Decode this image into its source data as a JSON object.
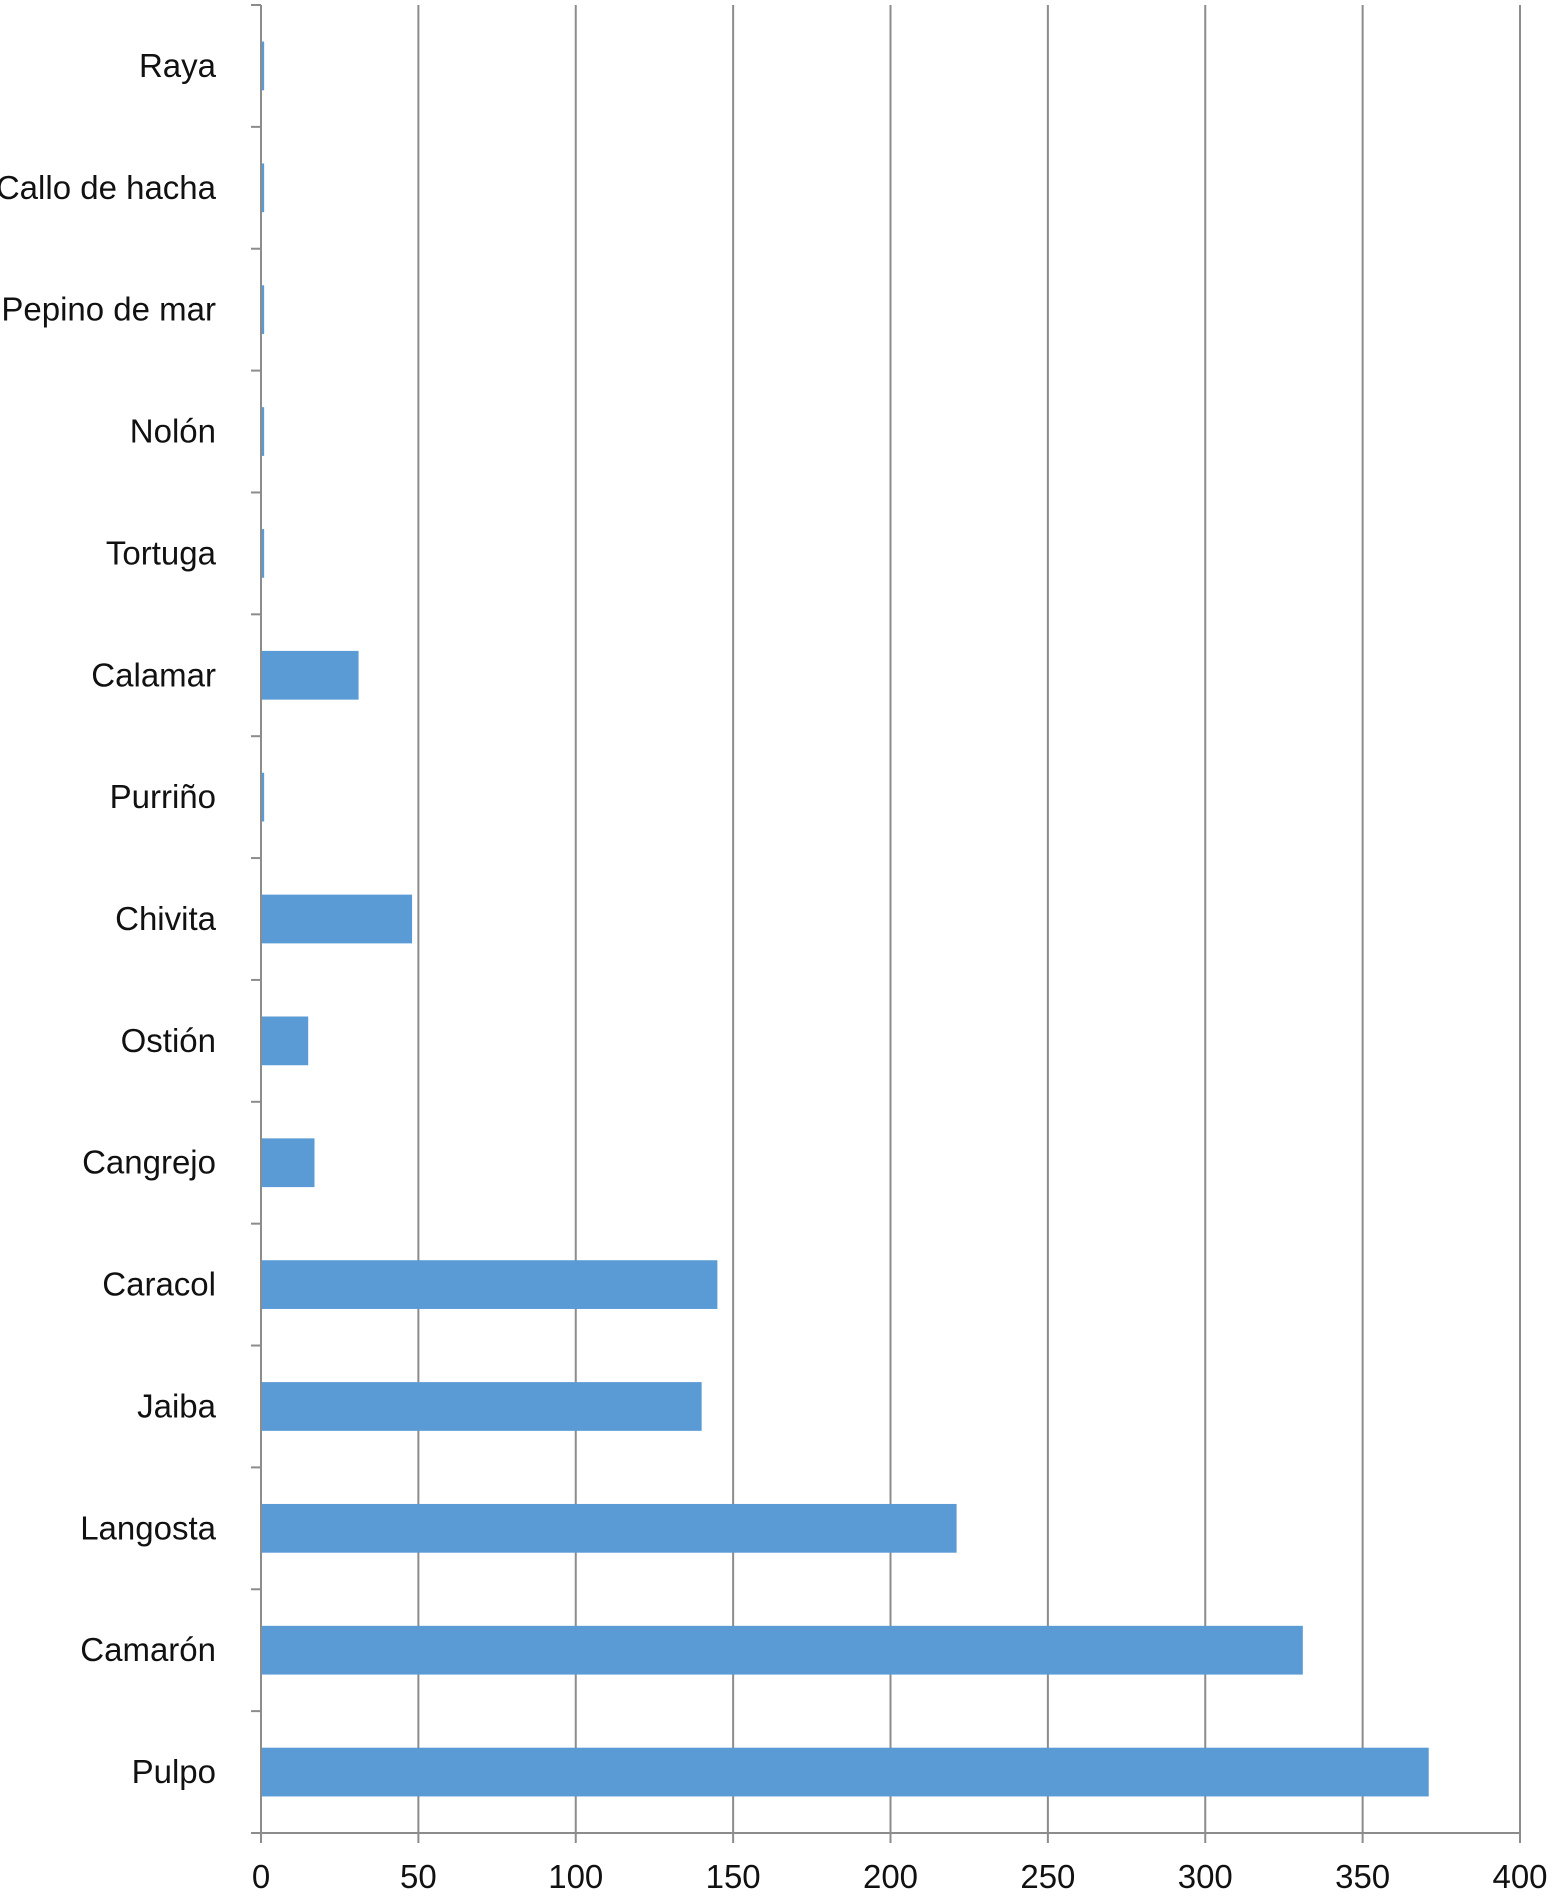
{
  "chart_data": {
    "type": "bar",
    "orientation": "horizontal",
    "categories": [
      "Raya",
      "Callo de hacha",
      "Pepino de mar",
      "Nolón",
      "Tortuga",
      "Calamar",
      "Purriño",
      "Chivita",
      "Ostión",
      "Cangrejo",
      "Caracol",
      "Jaiba",
      "Langosta",
      "Camarón",
      "Pulpo"
    ],
    "values": [
      1,
      1,
      1,
      1,
      1,
      31,
      1,
      48,
      15,
      17,
      145,
      140,
      221,
      331,
      371
    ],
    "xlim": [
      0,
      400
    ],
    "x_ticks": [
      "0",
      "50",
      "100",
      "150",
      "200",
      "250",
      "300",
      "350",
      "400"
    ],
    "title": "",
    "xlabel": "",
    "ylabel": "",
    "grid": "vertical",
    "legend": "none",
    "bar_color": "#5b9bd5"
  }
}
